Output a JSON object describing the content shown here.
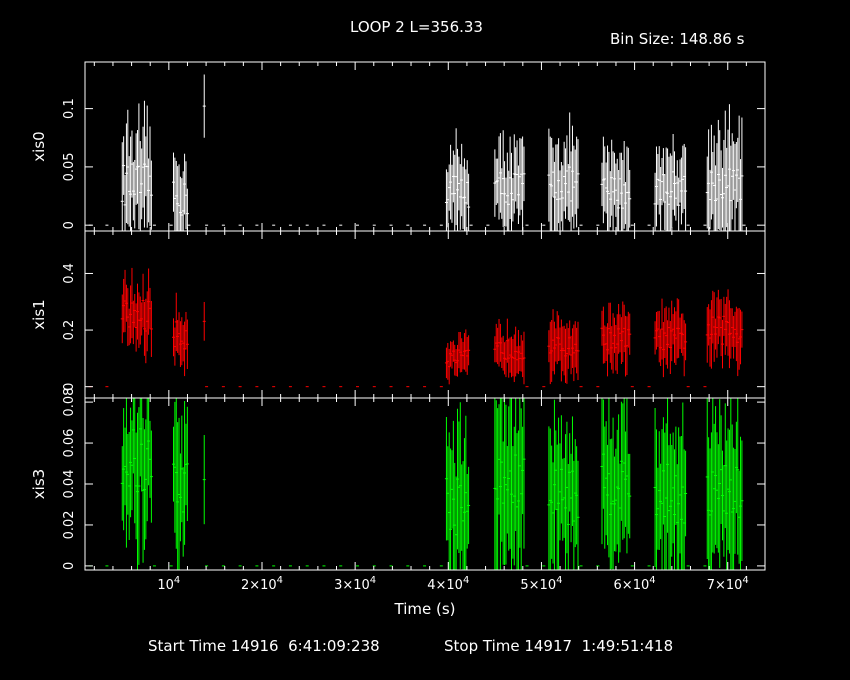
{
  "header": {
    "title": "LOOP 2 L=356.33",
    "bin_size": "Bin Size: 148.86 s"
  },
  "footer": {
    "start_time": "Start Time 14916  6:41:09:238",
    "stop_time": "Stop Time 14917  1:49:51:418"
  },
  "chart_data": {
    "type": "scatter",
    "x_label": "Time (s)",
    "x_range": [
      1000,
      74000
    ],
    "x_ticks": [
      {
        "v": 10000,
        "mant": "",
        "exp": "4"
      },
      {
        "v": 20000,
        "mant": "2×10",
        "exp": "4"
      },
      {
        "v": 30000,
        "mant": "3×10",
        "exp": "4"
      },
      {
        "v": 40000,
        "mant": "4×10",
        "exp": "4"
      },
      {
        "v": 50000,
        "mant": "5×10",
        "exp": "4"
      },
      {
        "v": 60000,
        "mant": "6×10",
        "exp": "4"
      },
      {
        "v": 70000,
        "mant": "7×10",
        "exp": "4"
      }
    ],
    "panels": [
      {
        "name": "xis0",
        "color": "#ffffff",
        "ylim": [
          -0.005,
          0.14
        ],
        "ticks": [
          0,
          0.05,
          0.1
        ],
        "tick_labels": [
          "0",
          "0.05",
          "0.1"
        ],
        "segments": [
          [
            5000,
            8200,
            0.035,
            0.018,
            0.04
          ],
          [
            10500,
            12000,
            0.022,
            0.015,
            0.03
          ],
          [
            13800,
            13800,
            0.1,
            0.02,
            0.04
          ],
          [
            39800,
            42200,
            0.03,
            0.015,
            0.03
          ],
          [
            45000,
            48200,
            0.032,
            0.015,
            0.03
          ],
          [
            50800,
            54000,
            0.035,
            0.015,
            0.035
          ],
          [
            56500,
            59500,
            0.028,
            0.015,
            0.03
          ],
          [
            62200,
            65500,
            0.032,
            0.015,
            0.03
          ],
          [
            67800,
            71500,
            0.035,
            0.015,
            0.04
          ]
        ],
        "zeros": [
          [
            1500,
            4800
          ],
          [
            8400,
            10300
          ],
          [
            12100,
            13500
          ],
          [
            14000,
            39500
          ],
          [
            42400,
            44800
          ],
          [
            48400,
            50500
          ],
          [
            54200,
            56200
          ],
          [
            59700,
            62000
          ],
          [
            65700,
            67600
          ],
          [
            71700,
            72500
          ]
        ]
      },
      {
        "name": "xis1",
        "color": "#ff0000",
        "ylim": [
          -0.04,
          0.55
        ],
        "ticks": [
          0,
          0.2,
          0.4
        ],
        "tick_labels": [
          "0",
          "0.2",
          "0.4"
        ],
        "segments": [
          [
            5000,
            8200,
            0.25,
            0.06,
            0.09
          ],
          [
            10500,
            12000,
            0.18,
            0.05,
            0.08
          ],
          [
            13800,
            13800,
            0.25,
            0.04,
            0.05
          ],
          [
            39800,
            42200,
            0.1,
            0.03,
            0.06
          ],
          [
            45000,
            48200,
            0.13,
            0.035,
            0.07
          ],
          [
            50800,
            54000,
            0.14,
            0.035,
            0.08
          ],
          [
            56500,
            59500,
            0.17,
            0.04,
            0.08
          ],
          [
            62200,
            65500,
            0.17,
            0.04,
            0.08
          ],
          [
            67800,
            71500,
            0.2,
            0.05,
            0.09
          ]
        ],
        "zeros": [
          [
            1500,
            4800
          ],
          [
            14000,
            39500
          ],
          [
            48400,
            50500
          ],
          [
            54200,
            56200
          ],
          [
            59700,
            62000
          ],
          [
            65700,
            67600
          ]
        ]
      },
      {
        "name": "xis3",
        "color": "#00ff00",
        "ylim": [
          -0.002,
          0.082
        ],
        "ticks": [
          0,
          0.02,
          0.04,
          0.06,
          0.08
        ],
        "tick_labels": [
          "0",
          "0.02",
          "0.04",
          "0.06",
          "0.08"
        ],
        "segments": [
          [
            5000,
            8200,
            0.05,
            0.018,
            0.03
          ],
          [
            10500,
            12000,
            0.04,
            0.015,
            0.03
          ],
          [
            13800,
            13800,
            0.06,
            0.02,
            0.03
          ],
          [
            39800,
            42200,
            0.03,
            0.015,
            0.03
          ],
          [
            45000,
            48200,
            0.04,
            0.015,
            0.035
          ],
          [
            50800,
            54000,
            0.035,
            0.015,
            0.03
          ],
          [
            56500,
            59500,
            0.04,
            0.015,
            0.03
          ],
          [
            62200,
            65500,
            0.035,
            0.015,
            0.03
          ],
          [
            67800,
            71500,
            0.035,
            0.015,
            0.035
          ]
        ],
        "zeros": [
          [
            1500,
            4800
          ],
          [
            8400,
            10300
          ],
          [
            14000,
            39500
          ],
          [
            48400,
            50500
          ],
          [
            54200,
            56200
          ],
          [
            59700,
            62000
          ],
          [
            65700,
            67600
          ]
        ]
      }
    ]
  }
}
